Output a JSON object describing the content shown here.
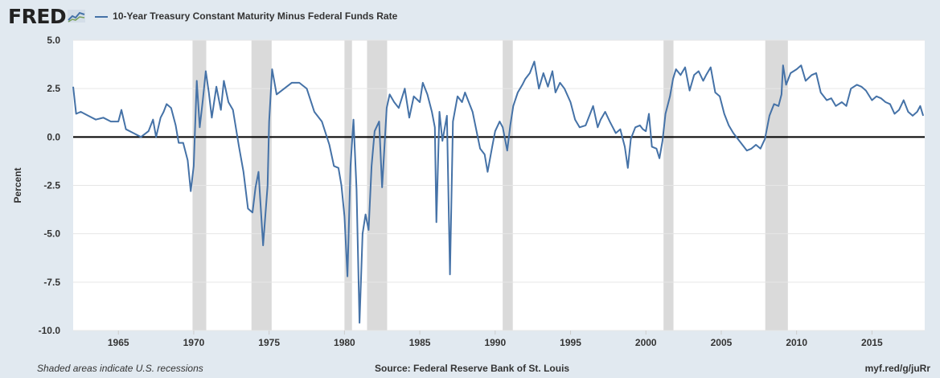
{
  "header": {
    "logo": "FRED",
    "legend_label": "10-Year Treasury Constant Maturity Minus Federal Funds Rate"
  },
  "footer": {
    "note": "Shaded areas indicate U.S. recessions",
    "source": "Source: Federal Reserve Bank of St. Louis",
    "link": "myf.red/g/juRr"
  },
  "colors": {
    "line": "#4572a7",
    "recession": "#dadada",
    "background": "#e1e9f0",
    "plot": "#ffffff"
  },
  "chart_data": {
    "type": "line",
    "title": "10-Year Treasury Constant Maturity Minus Federal Funds Rate",
    "ylabel": "Percent",
    "xlabel": "",
    "ylim": [
      -10,
      5
    ],
    "xlim": [
      1962,
      2018.5
    ],
    "yticks": [
      "5.0",
      "2.5",
      "0.0",
      "-2.5",
      "-5.0",
      "-7.5",
      "-10.0"
    ],
    "xticks": [
      "1965",
      "1970",
      "1975",
      "1980",
      "1985",
      "1990",
      "1995",
      "2000",
      "2005",
      "2010",
      "2015"
    ],
    "zero_line": true,
    "grid": "horizontal",
    "recessions": [
      [
        1969.92,
        1970.83
      ],
      [
        1973.83,
        1975.17
      ],
      [
        1980.0,
        1980.5
      ],
      [
        1981.5,
        1982.83
      ],
      [
        1990.5,
        1991.17
      ],
      [
        2001.17,
        2001.83
      ],
      [
        2007.92,
        2009.42
      ]
    ],
    "series": [
      {
        "name": "10-Year Treasury Constant Maturity Minus Federal Funds Rate",
        "points": [
          [
            1962.0,
            2.6
          ],
          [
            1962.2,
            1.2
          ],
          [
            1962.5,
            1.3
          ],
          [
            1963.0,
            1.1
          ],
          [
            1963.5,
            0.9
          ],
          [
            1964.0,
            1.0
          ],
          [
            1964.5,
            0.8
          ],
          [
            1965.0,
            0.8
          ],
          [
            1965.2,
            1.4
          ],
          [
            1965.5,
            0.4
          ],
          [
            1966.0,
            0.2
          ],
          [
            1966.5,
            0.0
          ],
          [
            1967.0,
            0.3
          ],
          [
            1967.3,
            0.9
          ],
          [
            1967.5,
            0.0
          ],
          [
            1967.8,
            1.0
          ],
          [
            1968.0,
            1.3
          ],
          [
            1968.2,
            1.7
          ],
          [
            1968.5,
            1.5
          ],
          [
            1968.8,
            0.6
          ],
          [
            1969.0,
            -0.3
          ],
          [
            1969.3,
            -0.3
          ],
          [
            1969.6,
            -1.2
          ],
          [
            1969.8,
            -2.8
          ],
          [
            1970.0,
            -1.5
          ],
          [
            1970.2,
            2.9
          ],
          [
            1970.4,
            0.5
          ],
          [
            1970.6,
            1.9
          ],
          [
            1970.8,
            3.4
          ],
          [
            1971.0,
            2.3
          ],
          [
            1971.2,
            1.0
          ],
          [
            1971.5,
            2.6
          ],
          [
            1971.8,
            1.4
          ],
          [
            1972.0,
            2.9
          ],
          [
            1972.3,
            1.8
          ],
          [
            1972.6,
            1.4
          ],
          [
            1973.0,
            -0.5
          ],
          [
            1973.3,
            -1.8
          ],
          [
            1973.6,
            -3.7
          ],
          [
            1973.9,
            -3.9
          ],
          [
            1974.1,
            -2.6
          ],
          [
            1974.3,
            -1.8
          ],
          [
            1974.6,
            -5.6
          ],
          [
            1974.9,
            -2.5
          ],
          [
            1975.0,
            0.8
          ],
          [
            1975.2,
            3.5
          ],
          [
            1975.5,
            2.2
          ],
          [
            1976.0,
            2.5
          ],
          [
            1976.5,
            2.8
          ],
          [
            1977.0,
            2.8
          ],
          [
            1977.5,
            2.5
          ],
          [
            1978.0,
            1.3
          ],
          [
            1978.5,
            0.8
          ],
          [
            1979.0,
            -0.4
          ],
          [
            1979.3,
            -1.5
          ],
          [
            1979.6,
            -1.6
          ],
          [
            1979.8,
            -2.5
          ],
          [
            1980.0,
            -4.1
          ],
          [
            1980.2,
            -7.2
          ],
          [
            1980.4,
            -1.5
          ],
          [
            1980.6,
            0.9
          ],
          [
            1980.8,
            -2.7
          ],
          [
            1981.0,
            -9.6
          ],
          [
            1981.2,
            -5.0
          ],
          [
            1981.4,
            -4.0
          ],
          [
            1981.6,
            -4.8
          ],
          [
            1981.8,
            -1.5
          ],
          [
            1982.0,
            0.3
          ],
          [
            1982.3,
            0.8
          ],
          [
            1982.5,
            -2.6
          ],
          [
            1982.8,
            1.5
          ],
          [
            1983.0,
            2.2
          ],
          [
            1983.3,
            1.8
          ],
          [
            1983.6,
            1.5
          ],
          [
            1984.0,
            2.5
          ],
          [
            1984.3,
            1.0
          ],
          [
            1984.6,
            2.1
          ],
          [
            1985.0,
            1.8
          ],
          [
            1985.2,
            2.8
          ],
          [
            1985.5,
            2.2
          ],
          [
            1985.8,
            1.3
          ],
          [
            1986.0,
            0.5
          ],
          [
            1986.1,
            -4.4
          ],
          [
            1986.3,
            1.3
          ],
          [
            1986.5,
            -0.2
          ],
          [
            1986.8,
            1.1
          ],
          [
            1987.0,
            -7.1
          ],
          [
            1987.2,
            0.8
          ],
          [
            1987.5,
            2.1
          ],
          [
            1987.8,
            1.8
          ],
          [
            1988.0,
            2.3
          ],
          [
            1988.5,
            1.3
          ],
          [
            1989.0,
            -0.6
          ],
          [
            1989.3,
            -0.9
          ],
          [
            1989.5,
            -1.8
          ],
          [
            1989.8,
            -0.5
          ],
          [
            1990.0,
            0.3
          ],
          [
            1990.3,
            0.8
          ],
          [
            1990.5,
            0.5
          ],
          [
            1990.8,
            -0.7
          ],
          [
            1991.0,
            0.6
          ],
          [
            1991.2,
            1.6
          ],
          [
            1991.5,
            2.3
          ],
          [
            1991.8,
            2.7
          ],
          [
            1992.0,
            3.0
          ],
          [
            1992.3,
            3.3
          ],
          [
            1992.6,
            3.9
          ],
          [
            1992.9,
            2.5
          ],
          [
            1993.2,
            3.3
          ],
          [
            1993.5,
            2.6
          ],
          [
            1993.8,
            3.4
          ],
          [
            1994.0,
            2.3
          ],
          [
            1994.3,
            2.8
          ],
          [
            1994.6,
            2.5
          ],
          [
            1995.0,
            1.8
          ],
          [
            1995.3,
            0.9
          ],
          [
            1995.6,
            0.5
          ],
          [
            1996.0,
            0.6
          ],
          [
            1996.3,
            1.2
          ],
          [
            1996.5,
            1.6
          ],
          [
            1996.8,
            0.5
          ],
          [
            1997.0,
            0.9
          ],
          [
            1997.3,
            1.3
          ],
          [
            1997.6,
            0.8
          ],
          [
            1998.0,
            0.2
          ],
          [
            1998.3,
            0.4
          ],
          [
            1998.6,
            -0.5
          ],
          [
            1998.8,
            -1.6
          ],
          [
            1999.0,
            -0.1
          ],
          [
            1999.3,
            0.5
          ],
          [
            1999.6,
            0.6
          ],
          [
            1999.8,
            0.4
          ],
          [
            2000.0,
            0.3
          ],
          [
            2000.2,
            1.2
          ],
          [
            2000.4,
            -0.5
          ],
          [
            2000.7,
            -0.6
          ],
          [
            2000.9,
            -1.1
          ],
          [
            2001.1,
            -0.2
          ],
          [
            2001.3,
            1.2
          ],
          [
            2001.6,
            2.1
          ],
          [
            2001.8,
            3.0
          ],
          [
            2002.0,
            3.5
          ],
          [
            2002.3,
            3.2
          ],
          [
            2002.6,
            3.6
          ],
          [
            2002.9,
            2.4
          ],
          [
            2003.2,
            3.2
          ],
          [
            2003.5,
            3.4
          ],
          [
            2003.8,
            2.9
          ],
          [
            2004.0,
            3.2
          ],
          [
            2004.3,
            3.6
          ],
          [
            2004.6,
            2.3
          ],
          [
            2004.9,
            2.1
          ],
          [
            2005.2,
            1.2
          ],
          [
            2005.5,
            0.6
          ],
          [
            2005.8,
            0.2
          ],
          [
            2006.1,
            -0.1
          ],
          [
            2006.4,
            -0.4
          ],
          [
            2006.7,
            -0.7
          ],
          [
            2007.0,
            -0.6
          ],
          [
            2007.3,
            -0.4
          ],
          [
            2007.6,
            -0.6
          ],
          [
            2007.9,
            -0.1
          ],
          [
            2008.2,
            1.1
          ],
          [
            2008.5,
            1.7
          ],
          [
            2008.8,
            1.6
          ],
          [
            2009.0,
            2.2
          ],
          [
            2009.1,
            3.7
          ],
          [
            2009.3,
            2.7
          ],
          [
            2009.6,
            3.3
          ],
          [
            2010.0,
            3.5
          ],
          [
            2010.3,
            3.7
          ],
          [
            2010.6,
            2.9
          ],
          [
            2011.0,
            3.2
          ],
          [
            2011.3,
            3.3
          ],
          [
            2011.6,
            2.3
          ],
          [
            2012.0,
            1.9
          ],
          [
            2012.3,
            2.0
          ],
          [
            2012.6,
            1.6
          ],
          [
            2013.0,
            1.8
          ],
          [
            2013.3,
            1.6
          ],
          [
            2013.6,
            2.5
          ],
          [
            2014.0,
            2.7
          ],
          [
            2014.3,
            2.6
          ],
          [
            2014.6,
            2.4
          ],
          [
            2015.0,
            1.9
          ],
          [
            2015.3,
            2.1
          ],
          [
            2015.6,
            2.0
          ],
          [
            2015.9,
            1.8
          ],
          [
            2016.2,
            1.7
          ],
          [
            2016.5,
            1.2
          ],
          [
            2016.8,
            1.4
          ],
          [
            2017.1,
            1.9
          ],
          [
            2017.4,
            1.3
          ],
          [
            2017.7,
            1.1
          ],
          [
            2018.0,
            1.3
          ],
          [
            2018.2,
            1.6
          ],
          [
            2018.4,
            1.1
          ]
        ]
      }
    ]
  }
}
